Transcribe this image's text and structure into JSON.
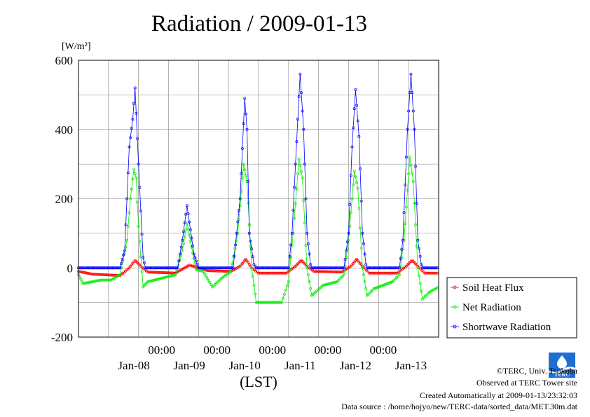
{
  "title": "Radiation / 2009-01-13",
  "chart_data": {
    "type": "scatter",
    "title": "Radiation / 2009-01-13",
    "ylabel": "[W/m²]",
    "xlabel": "(LST)",
    "ylim": [
      -200,
      600
    ],
    "yticks": [
      -200,
      0,
      200,
      400,
      600
    ],
    "x_start": "2009-01-07T12:00",
    "x_end": "2009-01-13T24:00",
    "x_tick_labels_time": [
      "00:00",
      "00:00",
      "00:00",
      "00:00",
      "00:00"
    ],
    "x_tick_times": [
      "2009-01-09T00:00",
      "2009-01-10T00:00",
      "2009-01-11T00:00",
      "2009-01-12T00:00",
      "2009-01-13T00:00"
    ],
    "x_date_labels": [
      "Jan-08",
      "Jan-09",
      "Jan-10",
      "Jan-11",
      "Jan-12",
      "Jan-13"
    ],
    "grid": true,
    "legend_placement": "right-outside",
    "colors": {
      "soil": "#ff0000",
      "net": "#00ee00",
      "sw": "#0000ff",
      "grid": "#808080"
    },
    "series": [
      {
        "name": "Soil Heat Flux",
        "key": "soil",
        "color": "#ff0000",
        "points": [
          [
            "2009-01-07T12:00",
            -10
          ],
          [
            "2009-01-07T18:00",
            -18
          ],
          [
            "2009-01-08T06:00",
            -22
          ],
          [
            "2009-01-08T10:00",
            0
          ],
          [
            "2009-01-08T12:30",
            22
          ],
          [
            "2009-01-08T15:00",
            5
          ],
          [
            "2009-01-08T18:00",
            -12
          ],
          [
            "2009-01-09T06:00",
            -15
          ],
          [
            "2009-01-09T12:00",
            8
          ],
          [
            "2009-01-09T15:00",
            2
          ],
          [
            "2009-01-09T20:00",
            -8
          ],
          [
            "2009-01-10T06:00",
            -10
          ],
          [
            "2009-01-10T10:00",
            5
          ],
          [
            "2009-01-10T12:30",
            25
          ],
          [
            "2009-01-10T15:00",
            0
          ],
          [
            "2009-01-10T18:00",
            -15
          ],
          [
            "2009-01-11T06:00",
            -15
          ],
          [
            "2009-01-11T10:00",
            5
          ],
          [
            "2009-01-11T12:30",
            22
          ],
          [
            "2009-01-11T15:00",
            5
          ],
          [
            "2009-01-11T18:00",
            -10
          ],
          [
            "2009-01-12T06:00",
            -12
          ],
          [
            "2009-01-12T10:00",
            5
          ],
          [
            "2009-01-12T12:30",
            25
          ],
          [
            "2009-01-12T15:00",
            5
          ],
          [
            "2009-01-12T18:00",
            -15
          ],
          [
            "2009-01-13T06:00",
            -15
          ],
          [
            "2009-01-13T10:00",
            5
          ],
          [
            "2009-01-13T12:30",
            22
          ],
          [
            "2009-01-13T15:00",
            5
          ],
          [
            "2009-01-13T18:00",
            -15
          ],
          [
            "2009-01-13T24:00",
            -15
          ]
        ]
      },
      {
        "name": "Net Radiation",
        "key": "net",
        "color": "#00ee00",
        "points": [
          [
            "2009-01-07T12:00",
            -20
          ],
          [
            "2009-01-07T14:00",
            -45
          ],
          [
            "2009-01-07T18:00",
            -40
          ],
          [
            "2009-01-07T22:00",
            -35
          ],
          [
            "2009-01-08T02:00",
            -35
          ],
          [
            "2009-01-08T06:00",
            -20
          ],
          [
            "2009-01-08T09:00",
            80
          ],
          [
            "2009-01-08T10:30",
            200
          ],
          [
            "2009-01-08T12:00",
            285
          ],
          [
            "2009-01-08T13:00",
            260
          ],
          [
            "2009-01-08T14:00",
            120
          ],
          [
            "2009-01-08T16:00",
            -55
          ],
          [
            "2009-01-08T18:00",
            -40
          ],
          [
            "2009-01-09T06:00",
            -20
          ],
          [
            "2009-01-09T09:00",
            50
          ],
          [
            "2009-01-09T11:00",
            130
          ],
          [
            "2009-01-09T13:00",
            60
          ],
          [
            "2009-01-09T15:00",
            -5
          ],
          [
            "2009-01-09T18:00",
            -10
          ],
          [
            "2009-01-09T22:00",
            -55
          ],
          [
            "2009-01-10T02:00",
            -30
          ],
          [
            "2009-01-10T06:00",
            -10
          ],
          [
            "2009-01-10T09:00",
            100
          ],
          [
            "2009-01-10T11:30",
            300
          ],
          [
            "2009-01-10T13:00",
            250
          ],
          [
            "2009-01-10T15:00",
            0
          ],
          [
            "2009-01-10T17:00",
            -100
          ],
          [
            "2009-01-10T22:00",
            -100
          ],
          [
            "2009-01-11T04:00",
            -100
          ],
          [
            "2009-01-11T07:00",
            -40
          ],
          [
            "2009-01-11T09:00",
            100
          ],
          [
            "2009-01-11T11:30",
            315
          ],
          [
            "2009-01-11T13:00",
            260
          ],
          [
            "2009-01-11T15:00",
            0
          ],
          [
            "2009-01-11T17:00",
            -80
          ],
          [
            "2009-01-11T22:00",
            -50
          ],
          [
            "2009-01-12T04:00",
            -40
          ],
          [
            "2009-01-12T07:00",
            -20
          ],
          [
            "2009-01-12T09:00",
            80
          ],
          [
            "2009-01-12T11:30",
            280
          ],
          [
            "2009-01-12T13:00",
            230
          ],
          [
            "2009-01-12T15:00",
            0
          ],
          [
            "2009-01-12T17:00",
            -80
          ],
          [
            "2009-01-12T20:00",
            -60
          ],
          [
            "2009-01-13T04:00",
            -40
          ],
          [
            "2009-01-13T07:00",
            -20
          ],
          [
            "2009-01-13T09:00",
            80
          ],
          [
            "2009-01-13T11:30",
            320
          ],
          [
            "2009-01-13T13:00",
            250
          ],
          [
            "2009-01-13T15:00",
            0
          ],
          [
            "2009-01-13T17:00",
            -90
          ],
          [
            "2009-01-13T20:00",
            -70
          ],
          [
            "2009-01-13T24:00",
            -55
          ]
        ]
      },
      {
        "name": "Shortwave Radiation",
        "key": "sw",
        "color": "#0000ff",
        "points": [
          [
            "2009-01-07T12:00",
            0
          ],
          [
            "2009-01-08T06:00",
            0
          ],
          [
            "2009-01-08T08:00",
            50
          ],
          [
            "2009-01-08T10:00",
            350
          ],
          [
            "2009-01-08T11:30",
            430
          ],
          [
            "2009-01-08T12:30",
            520
          ],
          [
            "2009-01-08T14:00",
            300
          ],
          [
            "2009-01-08T16:00",
            30
          ],
          [
            "2009-01-08T17:00",
            0
          ],
          [
            "2009-01-09T07:00",
            0
          ],
          [
            "2009-01-09T09:00",
            80
          ],
          [
            "2009-01-09T11:00",
            180
          ],
          [
            "2009-01-09T12:30",
            110
          ],
          [
            "2009-01-09T14:00",
            40
          ],
          [
            "2009-01-09T16:00",
            0
          ],
          [
            "2009-01-10T07:00",
            0
          ],
          [
            "2009-01-10T08:30",
            100
          ],
          [
            "2009-01-10T10:00",
            200
          ],
          [
            "2009-01-10T12:00",
            490
          ],
          [
            "2009-01-10T13:00",
            400
          ],
          [
            "2009-01-10T14:00",
            100
          ],
          [
            "2009-01-10T16:00",
            10
          ],
          [
            "2009-01-10T17:00",
            0
          ],
          [
            "2009-01-11T07:00",
            0
          ],
          [
            "2009-01-11T08:30",
            100
          ],
          [
            "2009-01-11T10:00",
            300
          ],
          [
            "2009-01-11T12:00",
            560
          ],
          [
            "2009-01-11T13:30",
            400
          ],
          [
            "2009-01-11T15:00",
            100
          ],
          [
            "2009-01-11T16:30",
            10
          ],
          [
            "2009-01-11T17:00",
            0
          ],
          [
            "2009-01-12T07:00",
            0
          ],
          [
            "2009-01-12T09:00",
            100
          ],
          [
            "2009-01-12T10:30",
            350
          ],
          [
            "2009-01-12T12:00",
            515
          ],
          [
            "2009-01-12T13:30",
            380
          ],
          [
            "2009-01-12T15:00",
            100
          ],
          [
            "2009-01-12T16:30",
            10
          ],
          [
            "2009-01-12T17:00",
            0
          ],
          [
            "2009-01-13T07:00",
            0
          ],
          [
            "2009-01-13T08:30",
            80
          ],
          [
            "2009-01-13T10:30",
            400
          ],
          [
            "2009-01-13T12:00",
            560
          ],
          [
            "2009-01-13T13:30",
            400
          ],
          [
            "2009-01-13T15:00",
            80
          ],
          [
            "2009-01-13T16:30",
            10
          ],
          [
            "2009-01-13T17:00",
            0
          ],
          [
            "2009-01-13T24:00",
            0
          ]
        ]
      }
    ]
  },
  "credits": {
    "copyright": "©TERC, Univ. Tsukuba",
    "observed": "Observed at TERC Tower site",
    "created": "Created Automatically at 2009-01-13/23:32:03",
    "source": "Data source : /home/hojyo/new/TERC-data/sorted_data/MET.30m.dat"
  },
  "logo_text": "TERC"
}
